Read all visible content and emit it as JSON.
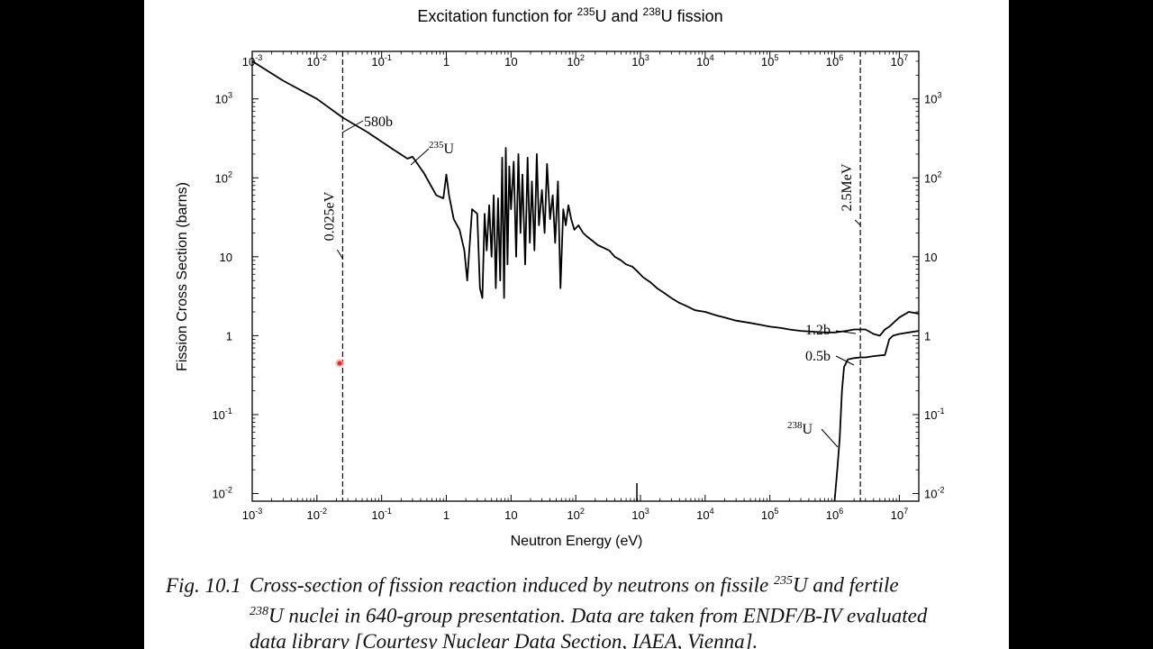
{
  "chart_data": {
    "type": "line",
    "title": "Excitation function for ²³⁵U and ²³⁸U fission",
    "xlabel": "Neutron Energy (eV)",
    "ylabel": "Fission Cross Section (barns)",
    "x_scale": "log",
    "y_scale": "log",
    "xlim": [
      0.001,
      20000000
    ],
    "ylim": [
      0.008,
      4000
    ],
    "x_ticks": [
      {
        "v": 0.001,
        "b": "10",
        "e": "-3"
      },
      {
        "v": 0.01,
        "b": "10",
        "e": "-2"
      },
      {
        "v": 0.1,
        "b": "10",
        "e": "-1"
      },
      {
        "v": 1,
        "b": "1",
        "e": ""
      },
      {
        "v": 10,
        "b": "10",
        "e": ""
      },
      {
        "v": 100,
        "b": "10",
        "e": "2"
      },
      {
        "v": 1000,
        "b": "10",
        "e": "3"
      },
      {
        "v": 10000,
        "b": "10",
        "e": "4"
      },
      {
        "v": 100000,
        "b": "10",
        "e": "5"
      },
      {
        "v": 1000000,
        "b": "10",
        "e": "6"
      },
      {
        "v": 10000000,
        "b": "10",
        "e": "7"
      }
    ],
    "y_ticks": [
      {
        "v": 0.01,
        "b": "10",
        "e": "-2"
      },
      {
        "v": 0.1,
        "b": "10",
        "e": "-1"
      },
      {
        "v": 1,
        "b": "1",
        "e": ""
      },
      {
        "v": 10,
        "b": "10",
        "e": ""
      },
      {
        "v": 100,
        "b": "10",
        "e": "2"
      },
      {
        "v": 1000,
        "b": "10",
        "e": "3"
      }
    ],
    "series": [
      {
        "name": "235U",
        "x": [
          0.001,
          0.003,
          0.01,
          0.025,
          0.06,
          0.15,
          0.25,
          0.3,
          0.45,
          0.7,
          0.9,
          1.0,
          1.1,
          1.3,
          1.6,
          1.9,
          2.1,
          2.5,
          3.0,
          3.3,
          3.6,
          3.9,
          4.2,
          4.6,
          5.0,
          5.4,
          5.8,
          6.3,
          6.8,
          7.3,
          7.8,
          8.3,
          8.8,
          9.4,
          10,
          11,
          12,
          13,
          14,
          15,
          16.5,
          18,
          19.5,
          21,
          23,
          25,
          27,
          30,
          33,
          36,
          40,
          44,
          48,
          53,
          58,
          64,
          70,
          77,
          85,
          95,
          110,
          130,
          150,
          180,
          220,
          270,
          330,
          400,
          500,
          600,
          750,
          900,
          1100,
          1400,
          1800,
          2300,
          3000,
          4000,
          5000,
          7000,
          10000,
          15000,
          20000,
          30000,
          50000,
          80000,
          100000,
          150000,
          200000,
          300000,
          500000,
          700000,
          1000000,
          1500000,
          2000000,
          3000000,
          4000000,
          5000000,
          6000000,
          7000000,
          10000000,
          14000000,
          20000000
        ],
        "y": [
          3000,
          1700,
          1000,
          580,
          380,
          230,
          175,
          185,
          115,
          60,
          55,
          110,
          60,
          30,
          22,
          12,
          5,
          40,
          35,
          4,
          3,
          35,
          12,
          45,
          10,
          60,
          4,
          55,
          5,
          180,
          3,
          240,
          8,
          140,
          40,
          160,
          10,
          200,
          20,
          110,
          8,
          180,
          15,
          90,
          12,
          200,
          25,
          70,
          20,
          150,
          30,
          60,
          15,
          90,
          4,
          40,
          25,
          45,
          30,
          22,
          25,
          20,
          18,
          16,
          14,
          13,
          12,
          10,
          9,
          8,
          7.5,
          6.5,
          5.5,
          4.8,
          4.0,
          3.5,
          3.0,
          2.6,
          2.4,
          2.1,
          2.0,
          1.8,
          1.7,
          1.55,
          1.45,
          1.35,
          1.3,
          1.25,
          1.2,
          1.15,
          1.12,
          1.1,
          1.1,
          1.15,
          1.2,
          1.2,
          1.05,
          1.0,
          1.2,
          1.3,
          1.7,
          2.0,
          1.9
        ]
      },
      {
        "name": "238U",
        "x": [
          1000000,
          1100000,
          1200000,
          1300000,
          1400000,
          1600000,
          2000000,
          2500000,
          3000000,
          4000000,
          5000000,
          6000000,
          7000000,
          8000000,
          10000000,
          14000000,
          20000000
        ],
        "y": [
          0.008,
          0.02,
          0.05,
          0.2,
          0.4,
          0.5,
          0.52,
          0.53,
          0.53,
          0.55,
          0.56,
          0.57,
          0.9,
          1.0,
          1.05,
          1.1,
          1.15
        ]
      }
    ],
    "vlines": [
      {
        "x": 0.025,
        "label": "0.025eV"
      },
      {
        "x": 2500000,
        "label": "2.5MeV"
      }
    ],
    "annotations": [
      {
        "text": "580b"
      },
      {
        "text": "1.2b"
      },
      {
        "text": "0.5b"
      }
    ],
    "grid": false
  },
  "caption": {
    "fig_label": "Fig. 10.1",
    "line1": "Cross-section of fission reaction induced by neutrons on fissile ",
    "sup1": "235",
    "line1_end": "U and fertile",
    "sup2": "238",
    "line2": "U nuclei in 640-group presentation. Data are taken from ENDF/B-IV evaluated",
    "line3": "data library [Courtesy Nuclear Data Section, IAEA, Vienna]."
  }
}
